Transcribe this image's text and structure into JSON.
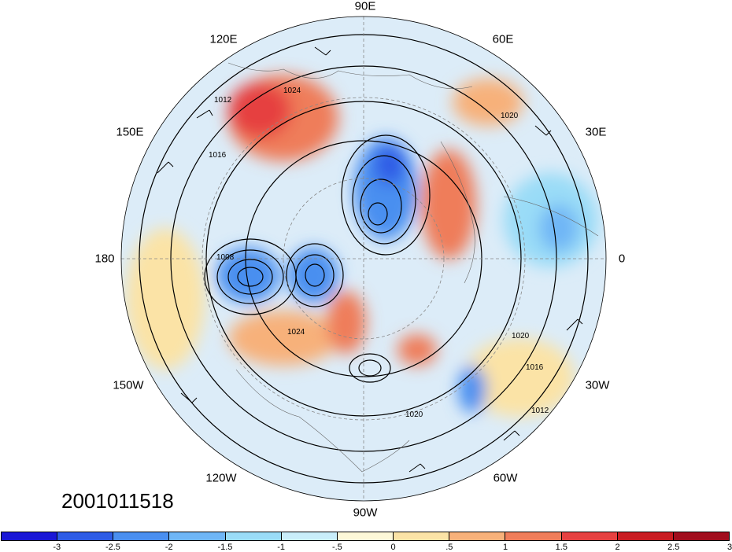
{
  "map": {
    "longitude_labels": [
      {
        "id": "90e",
        "text": "90E"
      },
      {
        "id": "60e",
        "text": "60E"
      },
      {
        "id": "30e",
        "text": "30E"
      },
      {
        "id": "0",
        "text": "0"
      },
      {
        "id": "30w",
        "text": "30W"
      },
      {
        "id": "60w",
        "text": "60W"
      },
      {
        "id": "90w",
        "text": "90W"
      },
      {
        "id": "120w",
        "text": "120W"
      },
      {
        "id": "150w",
        "text": "150W"
      },
      {
        "id": "180",
        "text": "180"
      },
      {
        "id": "150e",
        "text": "150E"
      },
      {
        "id": "120e",
        "text": "120E"
      }
    ],
    "contour_labels": [
      "1012",
      "1016",
      "1020",
      "1024",
      "1008",
      "1020",
      "1016",
      "1012",
      "1024",
      "1020"
    ],
    "timestamp": "2001011518"
  },
  "colorbar": {
    "colors": [
      "#1a17d6",
      "#2e5ce6",
      "#4a8ff0",
      "#6fb6f6",
      "#9adcf7",
      "#c9eefa",
      "#fdf8d8",
      "#fbe3a6",
      "#f7b17a",
      "#ef7d5a",
      "#e64141",
      "#c91c22",
      "#a10d1d"
    ],
    "labels": [
      "-3",
      "-2.5",
      "-2",
      "-1.5",
      "-1",
      "-.5",
      "0",
      ".5",
      "1",
      "1.5",
      "2",
      "2.5",
      "3"
    ]
  }
}
